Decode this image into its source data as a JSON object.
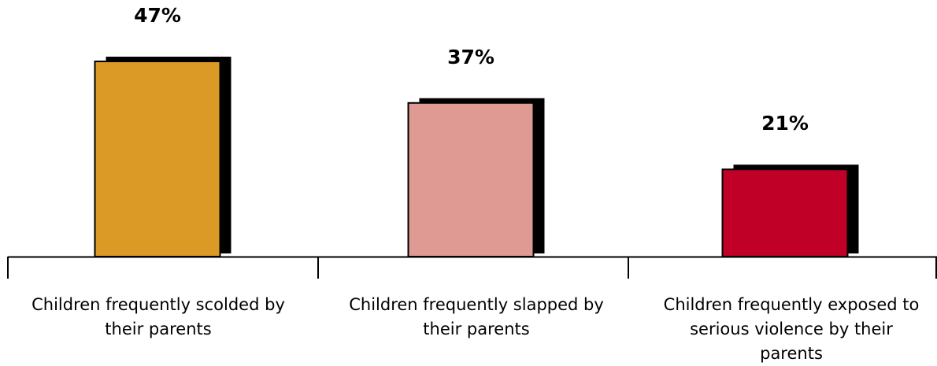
{
  "chart_data": {
    "type": "bar",
    "categories": [
      "Children frequently scolded by their parents",
      "Children frequently slapped by their parents",
      "Children frequently exposed to serious violence by their parents"
    ],
    "values": [
      47,
      37,
      21
    ],
    "value_labels": [
      "47%",
      "37%",
      "21%"
    ],
    "bar_colors": [
      "#da9a25",
      "#df9a93",
      "#c00026"
    ],
    "shadow_color": "#000000",
    "ylim": [
      0,
      50
    ],
    "title": "",
    "xlabel": "",
    "ylabel": "",
    "grid": false,
    "legend": "none"
  }
}
